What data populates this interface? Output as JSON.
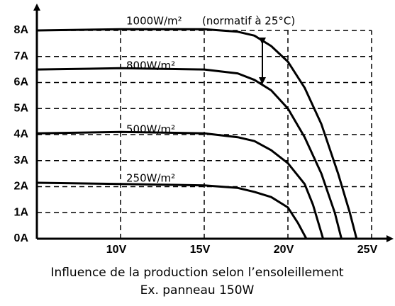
{
  "chart_data": {
    "type": "line",
    "annotations": [
      "(normatif à 25°C)"
    ],
    "caption": [
      "Influence de la production selon l’ensoleillement",
      "Ex. panneau 150W"
    ],
    "xlim": [
      5,
      26
    ],
    "ylim": [
      0,
      9
    ],
    "xticks": [
      {
        "value": 10,
        "label": "10V"
      },
      {
        "value": 15,
        "label": "15V"
      },
      {
        "value": 20,
        "label": "20V"
      },
      {
        "value": 25,
        "label": "25V"
      }
    ],
    "yticks": [
      {
        "value": 0,
        "label": "0A"
      },
      {
        "value": 1,
        "label": "1A"
      },
      {
        "value": 2,
        "label": "2A"
      },
      {
        "value": 3,
        "label": "3A"
      },
      {
        "value": 4,
        "label": "4A"
      },
      {
        "value": 5,
        "label": "5A"
      },
      {
        "value": 6,
        "label": "6A"
      },
      {
        "value": 7,
        "label": "7A"
      },
      {
        "value": 8,
        "label": "8A"
      }
    ],
    "grid": true,
    "series": [
      {
        "name": "1000W/m²",
        "color": "#000000",
        "x": [
          5,
          10,
          15,
          17,
          18,
          19,
          20,
          21,
          22,
          23,
          23.7,
          24.1
        ],
        "values": [
          8.0,
          8.05,
          8.05,
          7.95,
          7.8,
          7.4,
          6.8,
          5.8,
          4.4,
          2.5,
          1.0,
          0
        ]
      },
      {
        "name": "800W/m²",
        "color": "#000000",
        "x": [
          5,
          10,
          15,
          17,
          18,
          19,
          20,
          21,
          22,
          22.8,
          23.2
        ],
        "values": [
          6.5,
          6.55,
          6.5,
          6.35,
          6.1,
          5.7,
          5.0,
          3.9,
          2.5,
          1.0,
          0
        ]
      },
      {
        "name": "500W/m²",
        "color": "#000000",
        "x": [
          5,
          10,
          15,
          17,
          18,
          19,
          20,
          21,
          21.5,
          22.1
        ],
        "values": [
          4.05,
          4.1,
          4.05,
          3.9,
          3.75,
          3.4,
          2.9,
          2.1,
          1.3,
          0
        ]
      },
      {
        "name": "250W/m²",
        "color": "#000000",
        "x": [
          5,
          10,
          15,
          17,
          18,
          19,
          20,
          20.6,
          21.1
        ],
        "values": [
          2.15,
          2.1,
          2.05,
          1.95,
          1.8,
          1.6,
          1.2,
          0.6,
          0
        ]
      }
    ]
  }
}
